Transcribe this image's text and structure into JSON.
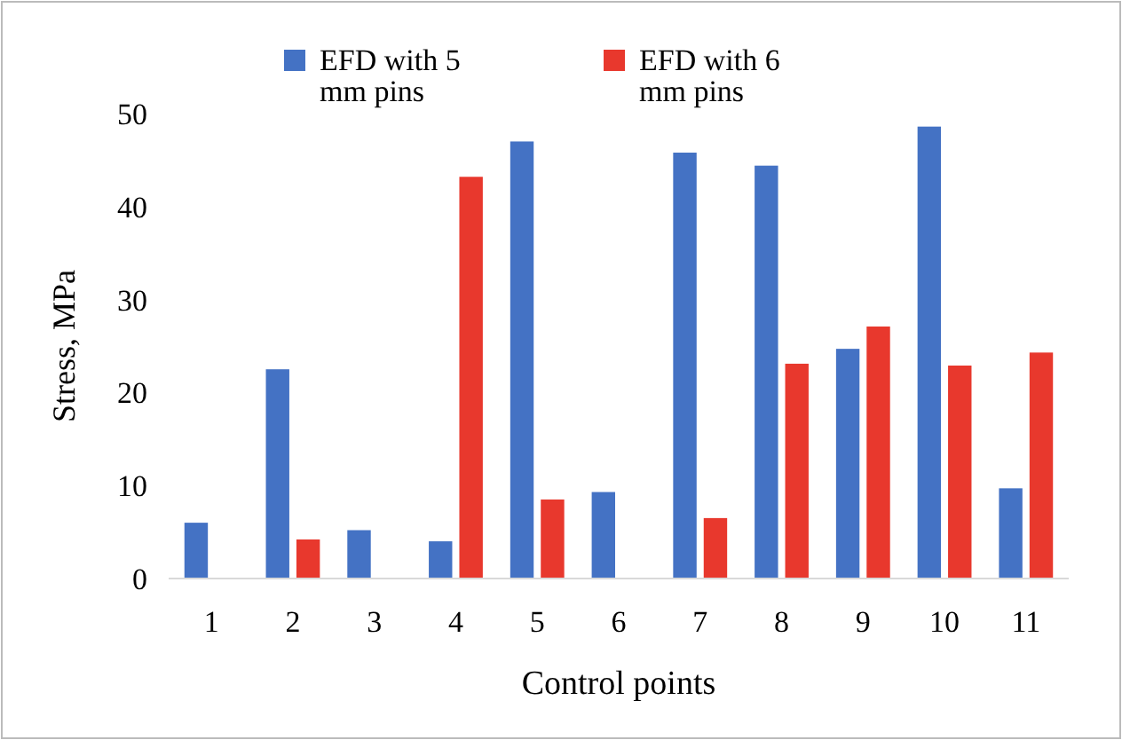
{
  "chart_data": {
    "type": "bar",
    "xlabel": "Control points",
    "ylabel": "Stress, MPa",
    "categories": [
      "1",
      "2",
      "3",
      "4",
      "5",
      "6",
      "7",
      "8",
      "9",
      "10",
      "11"
    ],
    "series": [
      {
        "name": "EFD with 5 mm pins",
        "color": "#4472c4",
        "values": [
          6,
          22.5,
          5.2,
          4,
          47,
          9.3,
          45.8,
          44.4,
          24.7,
          48.6,
          9.7
        ]
      },
      {
        "name": "EFD with 6 mm pins",
        "color": "#e8382d",
        "values": [
          null,
          4.2,
          null,
          43.2,
          8.5,
          null,
          6.5,
          23.1,
          27.1,
          22.9,
          24.3
        ]
      }
    ],
    "ylim": [
      0,
      50
    ],
    "yticks": [
      0,
      10,
      20,
      30,
      40,
      50
    ],
    "grid": false,
    "legend": "top"
  }
}
